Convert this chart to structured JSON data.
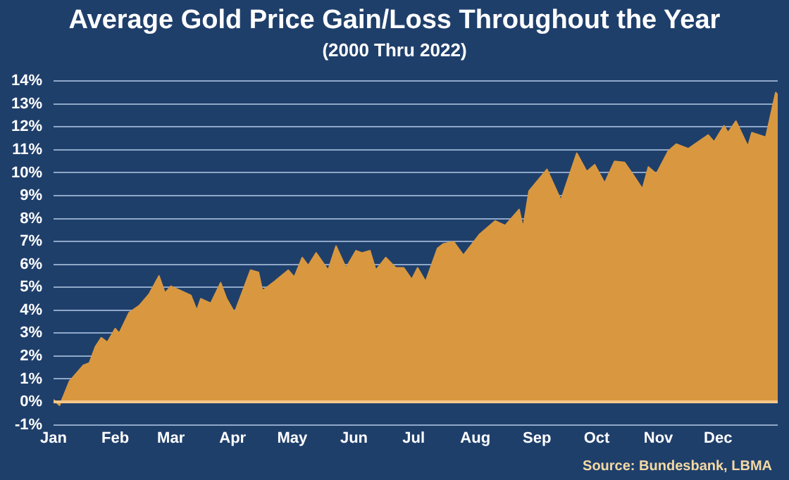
{
  "chart_data": {
    "type": "area",
    "title": "Average Gold Price Gain/Loss Throughout the Year",
    "subtitle": "(2000 Thru 2022)",
    "annotations": [
      "Source: Bundesbank, LBMA"
    ],
    "x": [
      "--01-01",
      "--01-04",
      "--01-06",
      "--01-09",
      "--01-12",
      "--01-16",
      "--01-19",
      "--01-22",
      "--01-25",
      "--01-28",
      "--02-01",
      "--02-03",
      "--02-08",
      "--02-13",
      "--02-18",
      "--02-23",
      "--02-26",
      "--03-01",
      "--03-06",
      "--03-11",
      "--03-14",
      "--03-16",
      "--03-21",
      "--03-26",
      "--03-29",
      "--04-02",
      "--04-10",
      "--04-14",
      "--04-16",
      "--04-22",
      "--04-29",
      "--05-02",
      "--05-06",
      "--05-09",
      "--05-13",
      "--05-19",
      "--05-23",
      "--05-28",
      "--06-02",
      "--06-05",
      "--06-09",
      "--06-12",
      "--06-17",
      "--06-22",
      "--06-26",
      "--06-30",
      "--07-03",
      "--07-07",
      "--07-13",
      "--07-16",
      "--07-21",
      "--07-26",
      "--08-03",
      "--08-11",
      "--08-16",
      "--08-23",
      "--08-25",
      "--08-28",
      "--09-06",
      "--09-13",
      "--09-21",
      "--09-26",
      "--09-30",
      "--10-05",
      "--10-10",
      "--10-15",
      "--10-19",
      "--10-24",
      "--10-27",
      "--10-31",
      "--11-06",
      "--11-10",
      "--11-16",
      "--11-26",
      "--11-29",
      "--12-04",
      "--12-06",
      "--12-10",
      "--12-16",
      "--12-18",
      "--12-25",
      "--12-30",
      "--12-31"
    ],
    "series": [
      {
        "color": "#d9983f",
        "values": [
          0.1,
          -0.15,
          0.26,
          0.9,
          1.2,
          1.6,
          1.7,
          2.4,
          2.8,
          2.6,
          3.2,
          3.0,
          3.9,
          4.2,
          4.7,
          5.5,
          4.75,
          5.05,
          4.85,
          4.65,
          4.0,
          4.5,
          4.3,
          5.2,
          4.5,
          3.9,
          5.75,
          5.65,
          4.85,
          5.25,
          5.75,
          5.45,
          6.3,
          5.95,
          6.5,
          5.75,
          6.8,
          5.85,
          6.6,
          6.5,
          6.6,
          5.75,
          6.3,
          5.85,
          5.85,
          5.35,
          5.85,
          5.25,
          6.7,
          6.9,
          7.0,
          6.4,
          7.3,
          7.9,
          7.7,
          8.4,
          7.6,
          9.2,
          10.15,
          8.8,
          10.85,
          10.05,
          10.35,
          9.55,
          10.5,
          10.45,
          9.95,
          9.3,
          10.25,
          9.95,
          10.95,
          11.25,
          11.05,
          11.65,
          11.35,
          12.05,
          11.75,
          12.25,
          11.15,
          11.75,
          11.55,
          13.5,
          13.4
        ]
      }
    ],
    "xlim": [
      "--01-01",
      "--12-31"
    ],
    "xticks": [
      {
        "value": "--01-01",
        "label": "Jan"
      },
      {
        "value": "--02-01",
        "label": "Feb"
      },
      {
        "value": "--03-01",
        "label": "Mar"
      },
      {
        "value": "--04-01",
        "label": "Apr"
      },
      {
        "value": "--05-01",
        "label": "May"
      },
      {
        "value": "--06-01",
        "label": "Jun"
      },
      {
        "value": "--07-01",
        "label": "Jul"
      },
      {
        "value": "--08-01",
        "label": "Aug"
      },
      {
        "value": "--09-01",
        "label": "Sep"
      },
      {
        "value": "--10-01",
        "label": "Oct"
      },
      {
        "value": "--11-01",
        "label": "Nov"
      },
      {
        "value": "--12-01",
        "label": "Dec"
      }
    ],
    "ylim": [
      -1,
      14
    ],
    "yticks": [
      {
        "value": -1,
        "label": "-1%"
      },
      {
        "value": 0,
        "label": "0%"
      },
      {
        "value": 1,
        "label": "1%"
      },
      {
        "value": 2,
        "label": "2%"
      },
      {
        "value": 3,
        "label": "3%"
      },
      {
        "value": 4,
        "label": "4%"
      },
      {
        "value": 5,
        "label": "5%"
      },
      {
        "value": 6,
        "label": "6%"
      },
      {
        "value": 7,
        "label": "7%"
      },
      {
        "value": 8,
        "label": "8%"
      },
      {
        "value": 9,
        "label": "9%"
      },
      {
        "value": 10,
        "label": "10%"
      },
      {
        "value": 11,
        "label": "11%"
      },
      {
        "value": 12,
        "label": "12%"
      },
      {
        "value": 13,
        "label": "13%"
      },
      {
        "value": 14,
        "label": "14%"
      }
    ],
    "ref_lines": [
      {
        "axis": "y",
        "value": 0,
        "color": "#f5c88a"
      }
    ],
    "grid": "y",
    "legend": false
  }
}
